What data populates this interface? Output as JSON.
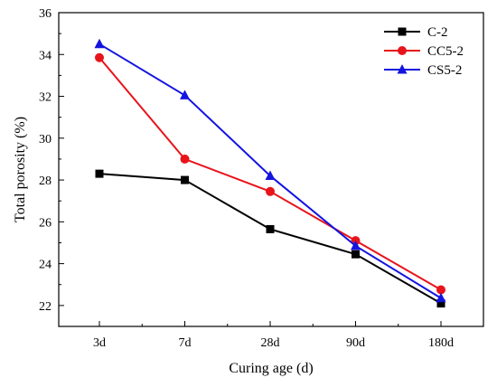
{
  "chart_data": {
    "type": "line",
    "title": "",
    "xlabel": "Curing age (d)",
    "ylabel": "Total porosity (%)",
    "categories": [
      "3d",
      "7d",
      "28d",
      "90d",
      "180d"
    ],
    "ylim": [
      21,
      36
    ],
    "yticks": [
      22,
      24,
      26,
      28,
      30,
      32,
      34,
      36
    ],
    "grid": false,
    "legend_position": "top-right",
    "series": [
      {
        "name": "C-2",
        "color": "#000000",
        "marker": "square",
        "values": [
          28.3,
          28.0,
          25.65,
          24.45,
          22.1
        ]
      },
      {
        "name": "CC5-2",
        "color": "#e8141b",
        "marker": "circle",
        "values": [
          33.85,
          29.0,
          27.45,
          25.1,
          22.75
        ]
      },
      {
        "name": "CS5-2",
        "color": "#1414e0",
        "marker": "triangle",
        "values": [
          34.5,
          32.05,
          28.2,
          24.85,
          22.35
        ]
      }
    ]
  }
}
